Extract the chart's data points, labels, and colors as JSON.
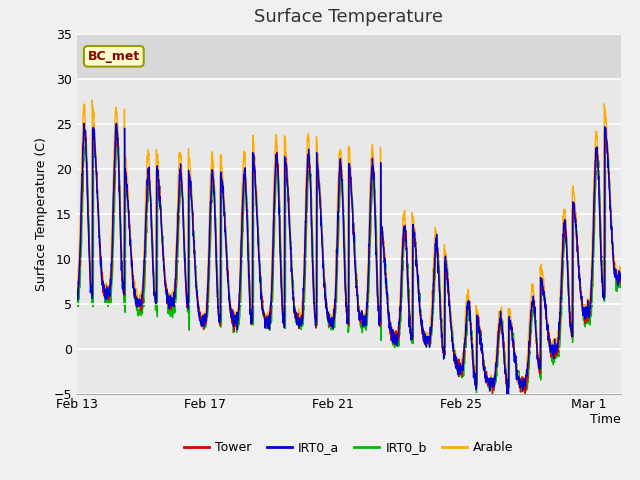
{
  "title": "Surface Temperature",
  "xlabel": "Time",
  "ylabel": "Surface Temperature (C)",
  "ylim": [
    -5,
    35
  ],
  "xlim_days": [
    0,
    17
  ],
  "x_tick_labels": [
    "Feb 13",
    "Feb 17",
    "Feb 21",
    "Feb 25",
    "Mar 1"
  ],
  "x_tick_positions": [
    0,
    4,
    8,
    12,
    16
  ],
  "colors": {
    "Tower": "#dd0000",
    "IRT0_a": "#0000dd",
    "IRT0_b": "#00bb00",
    "Arable": "#ffaa00"
  },
  "legend_labels": [
    "Tower",
    "IRT0_a",
    "IRT0_b",
    "Arable"
  ],
  "annotation_text": "BC_met",
  "plot_bg_color": "#e8e8e8",
  "fig_bg_color": "#f0f0f0",
  "grid_color": "#ffffff",
  "linewidth": 1.0,
  "title_fontsize": 13,
  "label_fontsize": 9,
  "tick_fontsize": 9,
  "peaks_per_day": 1,
  "n_days": 17,
  "n_pts": 2040
}
